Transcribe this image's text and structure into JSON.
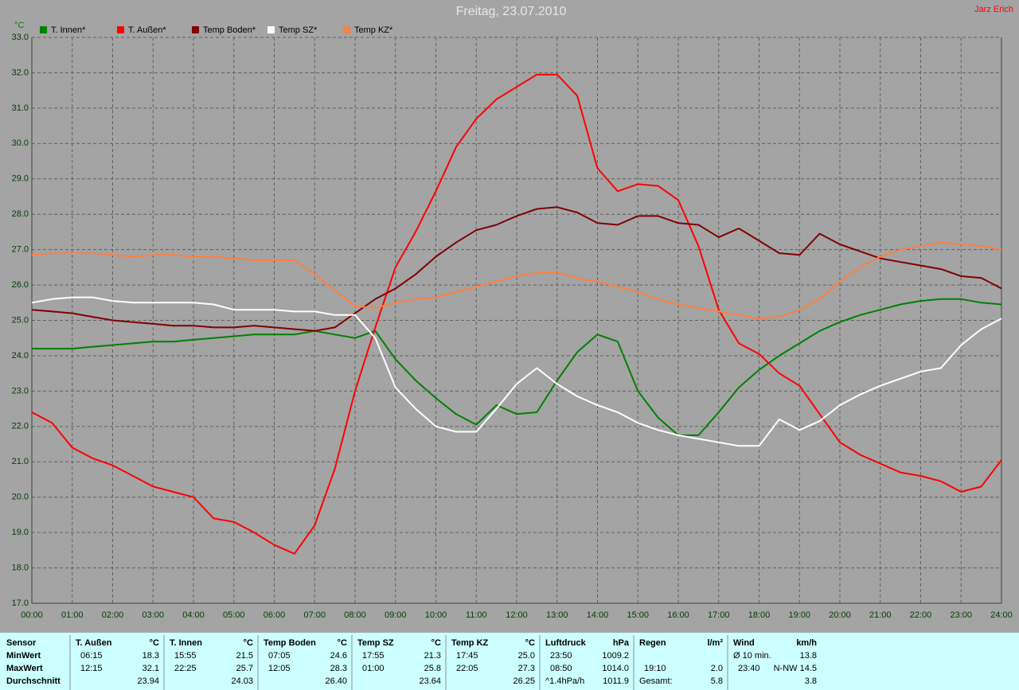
{
  "chart_data": {
    "type": "line",
    "title": "Freitag, 23.07.2010",
    "annotation": "Jarz Erich",
    "y_label": "°C",
    "x": [
      0,
      0.5,
      1,
      1.5,
      2,
      2.5,
      3,
      3.5,
      4,
      4.5,
      5,
      5.5,
      6,
      6.5,
      7,
      7.5,
      8,
      8.5,
      9,
      9.5,
      10,
      10.5,
      11,
      11.5,
      12,
      12.5,
      13,
      13.5,
      14,
      14.5,
      15,
      15.5,
      16,
      16.5,
      17,
      17.5,
      18,
      18.5,
      19,
      19.5,
      20,
      20.5,
      21,
      21.5,
      22,
      22.5,
      23,
      23.5,
      24
    ],
    "xlim": [
      0,
      24
    ],
    "xticks": [
      {
        "value": 0,
        "label": "00:00"
      },
      {
        "value": 1,
        "label": "01:00"
      },
      {
        "value": 2,
        "label": "02:00"
      },
      {
        "value": 3,
        "label": "03:00"
      },
      {
        "value": 4,
        "label": "04:00"
      },
      {
        "value": 5,
        "label": "05:00"
      },
      {
        "value": 6,
        "label": "06:00"
      },
      {
        "value": 7,
        "label": "07:00"
      },
      {
        "value": 8,
        "label": "08:00"
      },
      {
        "value": 9,
        "label": "09:00"
      },
      {
        "value": 10,
        "label": "10:00"
      },
      {
        "value": 11,
        "label": "11:00"
      },
      {
        "value": 12,
        "label": "12:00"
      },
      {
        "value": 13,
        "label": "13:00"
      },
      {
        "value": 14,
        "label": "14:00"
      },
      {
        "value": 15,
        "label": "15:00"
      },
      {
        "value": 16,
        "label": "16:00"
      },
      {
        "value": 17,
        "label": "17:00"
      },
      {
        "value": 18,
        "label": "18:00"
      },
      {
        "value": 19,
        "label": "19:00"
      },
      {
        "value": 20,
        "label": "20:00"
      },
      {
        "value": 21,
        "label": "21:00"
      },
      {
        "value": 22,
        "label": "22:00"
      },
      {
        "value": 23,
        "label": "23:00"
      },
      {
        "value": 24,
        "label": "24:00"
      }
    ],
    "ylim": [
      17,
      33
    ],
    "yticks": [
      {
        "value": 17,
        "label": "17.0"
      },
      {
        "value": 18,
        "label": "18.0"
      },
      {
        "value": 19,
        "label": "19.0"
      },
      {
        "value": 20,
        "label": "20.0"
      },
      {
        "value": 21,
        "label": "21.0"
      },
      {
        "value": 22,
        "label": "22.0"
      },
      {
        "value": 23,
        "label": "23.0"
      },
      {
        "value": 24,
        "label": "24.0"
      },
      {
        "value": 25,
        "label": "25.0"
      },
      {
        "value": 26,
        "label": "26.0"
      },
      {
        "value": 27,
        "label": "27.0"
      },
      {
        "value": 28,
        "label": "28.0"
      },
      {
        "value": 29,
        "label": "29.0"
      },
      {
        "value": 30,
        "label": "30.0"
      },
      {
        "value": 31,
        "label": "31.0"
      },
      {
        "value": 32,
        "label": "32.0"
      },
      {
        "value": 33,
        "label": "33.0"
      }
    ],
    "grid": true,
    "series": [
      {
        "name": "T. Innen*",
        "color": "#008000",
        "values": [
          24.2,
          24.2,
          24.2,
          24.25,
          24.3,
          24.35,
          24.4,
          24.4,
          24.45,
          24.5,
          24.55,
          24.6,
          24.6,
          24.6,
          24.7,
          24.6,
          24.5,
          24.7,
          23.9,
          23.3,
          22.8,
          22.35,
          22.05,
          22.6,
          22.35,
          22.4,
          23.3,
          24.1,
          24.6,
          24.4,
          23.0,
          22.25,
          21.75,
          21.75,
          22.4,
          23.1,
          23.6,
          24.0,
          24.35,
          24.7,
          24.95,
          25.15,
          25.3,
          25.45,
          25.55,
          25.6,
          25.6,
          25.5,
          25.45
        ]
      },
      {
        "name": "T. Außen*",
        "color": "#ff0000",
        "values": [
          22.4,
          22.1,
          21.4,
          21.1,
          20.9,
          20.6,
          20.3,
          20.15,
          20.0,
          19.4,
          19.3,
          19.0,
          18.65,
          18.4,
          19.2,
          20.8,
          23.0,
          24.8,
          26.5,
          27.5,
          28.65,
          29.9,
          30.7,
          31.25,
          31.6,
          31.95,
          31.95,
          31.35,
          29.3,
          28.65,
          28.85,
          28.8,
          28.4,
          27.1,
          25.3,
          24.35,
          24.05,
          23.5,
          23.15,
          22.35,
          21.55,
          21.2,
          20.95,
          20.7,
          20.6,
          20.45,
          20.15,
          20.3,
          21.05
        ]
      },
      {
        "name": "Temp Boden*",
        "color": "#800000",
        "values": [
          25.3,
          25.25,
          25.2,
          25.1,
          25.0,
          24.95,
          24.9,
          24.85,
          24.85,
          24.8,
          24.8,
          24.85,
          24.8,
          24.75,
          24.7,
          24.8,
          25.2,
          25.6,
          25.9,
          26.3,
          26.8,
          27.2,
          27.55,
          27.7,
          27.95,
          28.15,
          28.2,
          28.05,
          27.75,
          27.7,
          27.95,
          27.95,
          27.75,
          27.7,
          27.35,
          27.6,
          27.25,
          26.9,
          26.85,
          27.45,
          27.15,
          26.95,
          26.75,
          26.65,
          26.55,
          26.45,
          26.25,
          26.2,
          25.9
        ]
      },
      {
        "name": "Temp SZ*",
        "color": "#ffffff",
        "values": [
          25.5,
          25.6,
          25.65,
          25.65,
          25.55,
          25.5,
          25.5,
          25.5,
          25.5,
          25.45,
          25.3,
          25.3,
          25.3,
          25.25,
          25.25,
          25.15,
          25.15,
          24.5,
          23.1,
          22.5,
          22.0,
          21.85,
          21.85,
          22.5,
          23.2,
          23.65,
          23.2,
          22.85,
          22.6,
          22.4,
          22.1,
          21.9,
          21.75,
          21.65,
          21.55,
          21.45,
          21.45,
          22.2,
          21.9,
          22.15,
          22.6,
          22.9,
          23.15,
          23.35,
          23.55,
          23.65,
          24.3,
          24.75,
          25.05
        ]
      },
      {
        "name": "Temp KZ*",
        "color": "#ff8040",
        "values": [
          26.85,
          26.9,
          26.9,
          26.9,
          26.85,
          26.8,
          26.85,
          26.85,
          26.8,
          26.8,
          26.75,
          26.7,
          26.7,
          26.7,
          26.3,
          25.85,
          25.4,
          25.35,
          25.5,
          25.6,
          25.65,
          25.8,
          25.95,
          26.1,
          26.25,
          26.35,
          26.35,
          26.2,
          26.1,
          25.95,
          25.8,
          25.6,
          25.45,
          25.35,
          25.25,
          25.15,
          25.05,
          25.1,
          25.3,
          25.6,
          26.1,
          26.5,
          26.8,
          27.0,
          27.1,
          27.2,
          27.15,
          27.1,
          27.0
        ]
      }
    ]
  },
  "table": {
    "row_labels": [
      "Sensor",
      "MinWert",
      "MaxWert",
      "Durchschnitt"
    ],
    "columns": [
      {
        "name": "T. Außen",
        "unit": "°C",
        "rows": [
          [
            "06:15",
            "18.3"
          ],
          [
            "12:15",
            "32.1"
          ],
          [
            null,
            "23.94"
          ]
        ]
      },
      {
        "name": "T. Innen",
        "unit": "°C",
        "rows": [
          [
            "15:55",
            "21.5"
          ],
          [
            "22:25",
            "25.7"
          ],
          [
            null,
            "24.03"
          ]
        ]
      },
      {
        "name": "Temp Boden",
        "unit": "°C",
        "rows": [
          [
            "07:05",
            "24.6"
          ],
          [
            "12:05",
            "28.3"
          ],
          [
            null,
            "26.40"
          ]
        ]
      },
      {
        "name": "Temp SZ",
        "unit": "°C",
        "rows": [
          [
            "17:55",
            "21.3"
          ],
          [
            "01:00",
            "25.8"
          ],
          [
            null,
            "23.64"
          ]
        ]
      },
      {
        "name": "Temp KZ",
        "unit": "°C",
        "rows": [
          [
            "17:45",
            "25.0"
          ],
          [
            "22:05",
            "27.3"
          ],
          [
            null,
            "26.25"
          ]
        ]
      },
      {
        "name": "Luftdruck",
        "unit": "hPa",
        "rows": [
          [
            "23:50",
            "1009.2"
          ],
          [
            "08:50",
            "1014.0"
          ],
          [
            "^1.4hPa/h",
            "1011.9"
          ]
        ]
      },
      {
        "name": "Regen",
        "unit": "l/m²",
        "rows": [
          [
            null,
            null
          ],
          [
            "19:10",
            "2.0"
          ],
          [
            "Gesamt:",
            "5.8"
          ]
        ]
      },
      {
        "name": "Wind",
        "unit": "km/h",
        "rows": [
          [
            "Ø 10 min.",
            "13.8"
          ],
          [
            "23:40",
            "N-NW 14.5"
          ],
          [
            null,
            "3.8"
          ]
        ]
      }
    ]
  }
}
